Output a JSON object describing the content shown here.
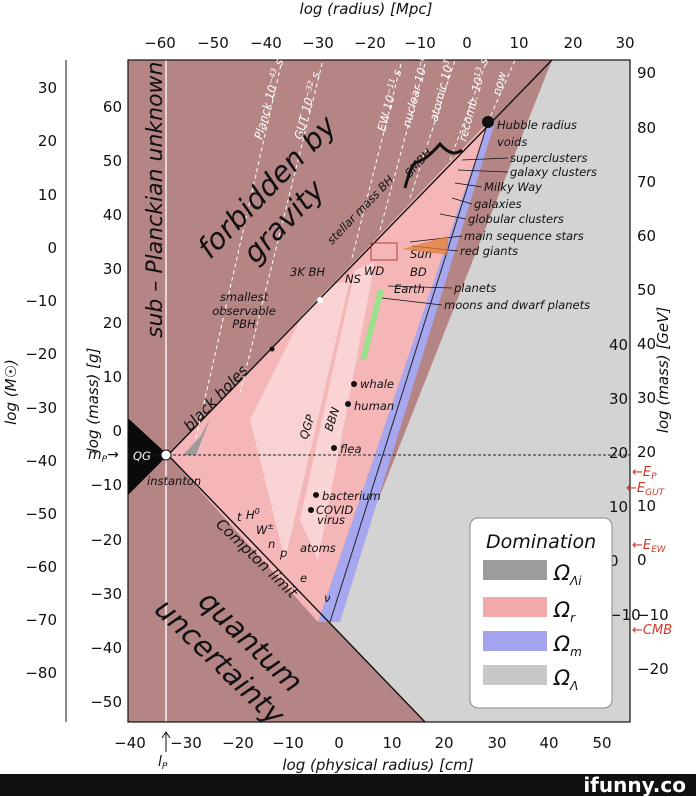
{
  "axes": {
    "top_title": "log (radius) [Mpc]",
    "top_ticks": [
      "−60",
      "−50",
      "−40",
      "−30",
      "−20",
      "−10",
      "0",
      "10",
      "20",
      "30"
    ],
    "bottom_title": "log (physical radius) [cm]",
    "bottom_ticks": [
      "−40",
      "−30",
      "−20",
      "−10",
      "0",
      "10",
      "20",
      "30",
      "40",
      "50"
    ],
    "planck_length": "l",
    "planck_length_sub": "P",
    "left_outer_title": "log (M☉)",
    "left_outer_ticks": [
      "30",
      "20",
      "10",
      "0",
      "−10",
      "−20",
      "−30",
      "−40",
      "−50",
      "−60",
      "−70",
      "−80"
    ],
    "left_inner_title": "log (mass) [g]",
    "left_inner_ticks": [
      "60",
      "50",
      "40",
      "30",
      "20",
      "10",
      "0",
      "−10",
      "−20",
      "−30",
      "−40",
      "−50"
    ],
    "planck_mass": "m",
    "planck_mass_sub": "P",
    "right_outer_ticks": [
      "90",
      "80",
      "70",
      "60",
      "50",
      "40",
      "30",
      "20",
      "10",
      "0",
      "−10",
      "−20"
    ],
    "right_inner_title": "log (mass) [GeV]",
    "right_inner_ticks": [
      "40",
      "30",
      "20",
      "10",
      "0",
      "−10"
    ],
    "energy_scales": [
      {
        "main": "E",
        "sub": "P"
      },
      {
        "main": "E",
        "sub": "GUT"
      },
      {
        "main": "E",
        "sub": "EW"
      },
      {
        "main": "CMB",
        "sub": ""
      }
    ]
  },
  "regions": {
    "forbidden": "forbidden by gravity",
    "forbidden_line1": "forbidden by",
    "forbidden_line2": "gravity",
    "planckian": "sub – Planckian unknown",
    "quantum_line1": "quantum",
    "quantum_line2": "uncertainty",
    "black_holes": "black holes",
    "compton": "Compton limit",
    "qg": "QG",
    "instanton": "instanton"
  },
  "epochs": [
    "Planck 10^-43 s",
    "GUT 10^-32 s",
    "EW 10^-11 s",
    "nuclear 10^-6 s",
    "atomic 10^3 s",
    "recomb. 10^13 s",
    "now"
  ],
  "epoch_labels": [
    {
      "name": "Planck",
      "exp": "10",
      "pow": "−43",
      "unit": "s"
    },
    {
      "name": "GUT",
      "exp": "10",
      "pow": "−32",
      "unit": "s"
    },
    {
      "name": "EW",
      "exp": "10",
      "pow": "−11",
      "unit": "s"
    },
    {
      "name": "nuclear",
      "exp": "10",
      "pow": "−6",
      "unit": "s"
    },
    {
      "name": "atomic",
      "exp": "10",
      "pow": "3",
      "unit": "s"
    },
    {
      "name": "recomb.",
      "exp": "10",
      "pow": "13",
      "unit": "s"
    },
    {
      "name": "now",
      "exp": "",
      "pow": "",
      "unit": ""
    }
  ],
  "objects": {
    "hubble": "Hubble radius",
    "voids": "voids",
    "superclusters": "superclusters",
    "galaxy_clusters": "galaxy clusters",
    "milky_way": "Milky Way",
    "galaxies": "galaxies",
    "globular": "globular clusters",
    "ms_stars": "main sequence stars",
    "red_giants": "red giants",
    "sun": "Sun",
    "bd": "BD",
    "wd": "WD",
    "ns": "NS",
    "earth": "Earth",
    "planets": "planets",
    "moons": "moons and dwarf planets",
    "smbh": "SMBH",
    "stellar_bh": "stellar mass BH",
    "bh3k": "3K BH",
    "smallest_pbh_1": "smallest",
    "smallest_pbh_2": "observable",
    "smallest_pbh_3": "PBH",
    "whale": "whale",
    "human": "human",
    "flea": "flea",
    "bacterium": "bacterium",
    "covid_1": "COVID",
    "covid_2": "virus",
    "atoms": "atoms",
    "qgp": "QGP",
    "bbn": "BBN",
    "t": "t",
    "h0": "H",
    "h0_sup": "0",
    "w": "W",
    "w_sup": "±",
    "n": "n",
    "p": "p",
    "e": "e",
    "nu": "ν"
  },
  "legend": {
    "title": "Domination",
    "items": [
      {
        "color": "#9c9c9c",
        "symbol": "Ω",
        "sub": "Λi"
      },
      {
        "color": "#f2a9aa",
        "symbol": "Ω",
        "sub": "r"
      },
      {
        "color": "#a4a4ee",
        "symbol": "Ω",
        "sub": "m"
      },
      {
        "color": "#c8c8c8",
        "symbol": "Ω",
        "sub": "Λ"
      }
    ]
  },
  "colors": {
    "forbidden": "#b58585",
    "radiation": "#f4b6b6",
    "matter": "#a7a7ef",
    "lambda": "#d3d3d3",
    "accent_red": "#d03a2a"
  },
  "footer": {
    "brand": "ifunny.co"
  }
}
